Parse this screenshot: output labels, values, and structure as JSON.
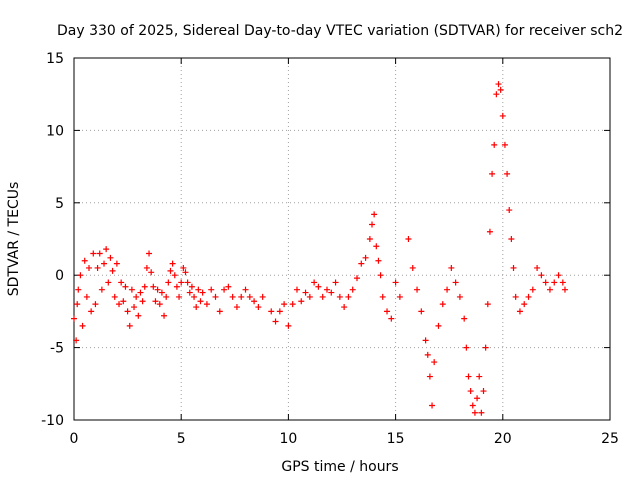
{
  "chart_data": {
    "type": "scatter",
    "title": "Day 330 of 2025, Sidereal Day-to-day VTEC variation (SDTVAR) for receiver sch2",
    "xlabel": "GPS time / hours",
    "ylabel": "SDTVAR / TECUs",
    "xlim": [
      0,
      25
    ],
    "ylim": [
      -10,
      15
    ],
    "xticks": [
      0,
      5,
      10,
      15,
      20,
      25
    ],
    "yticks": [
      -10,
      -5,
      0,
      5,
      10,
      15
    ],
    "xtick_labels": [
      "0",
      "5",
      "10",
      "15",
      "20",
      "25"
    ],
    "ytick_labels": [
      "-10",
      "-5",
      "0",
      "5",
      "10",
      "15"
    ],
    "grid": true,
    "marker": "+",
    "series": [
      {
        "name": "SDTVAR",
        "color": "#ff0000",
        "points": [
          [
            0.0,
            -3.0
          ],
          [
            0.1,
            -4.5
          ],
          [
            0.15,
            -2.0
          ],
          [
            0.2,
            -1.0
          ],
          [
            0.3,
            0.0
          ],
          [
            0.4,
            -3.5
          ],
          [
            0.5,
            1.0
          ],
          [
            0.6,
            -1.5
          ],
          [
            0.7,
            0.5
          ],
          [
            0.8,
            -2.5
          ],
          [
            0.9,
            1.5
          ],
          [
            1.0,
            -2.0
          ],
          [
            1.1,
            0.5
          ],
          [
            1.2,
            1.5
          ],
          [
            1.3,
            -1.0
          ],
          [
            1.4,
            0.8
          ],
          [
            1.5,
            1.8
          ],
          [
            1.6,
            -0.5
          ],
          [
            1.7,
            1.2
          ],
          [
            1.8,
            0.3
          ],
          [
            1.9,
            -1.5
          ],
          [
            2.0,
            0.8
          ],
          [
            2.1,
            -2.0
          ],
          [
            2.2,
            -0.5
          ],
          [
            2.3,
            -1.8
          ],
          [
            2.4,
            -0.8
          ],
          [
            2.5,
            -2.5
          ],
          [
            2.6,
            -3.5
          ],
          [
            2.7,
            -1.0
          ],
          [
            2.8,
            -2.2
          ],
          [
            2.9,
            -1.5
          ],
          [
            3.0,
            -2.8
          ],
          [
            3.1,
            -1.2
          ],
          [
            3.2,
            -1.8
          ],
          [
            3.3,
            -0.8
          ],
          [
            3.4,
            0.5
          ],
          [
            3.5,
            1.5
          ],
          [
            3.6,
            0.2
          ],
          [
            3.7,
            -0.8
          ],
          [
            3.8,
            -1.8
          ],
          [
            3.9,
            -1.0
          ],
          [
            4.0,
            -2.0
          ],
          [
            4.1,
            -1.2
          ],
          [
            4.2,
            -2.8
          ],
          [
            4.3,
            -1.5
          ],
          [
            4.4,
            -0.5
          ],
          [
            4.5,
            0.3
          ],
          [
            4.6,
            0.8
          ],
          [
            4.7,
            0.0
          ],
          [
            4.8,
            -0.8
          ],
          [
            4.9,
            -1.5
          ],
          [
            5.0,
            -0.5
          ],
          [
            5.1,
            0.5
          ],
          [
            5.2,
            0.2
          ],
          [
            5.3,
            -0.5
          ],
          [
            5.4,
            -1.2
          ],
          [
            5.5,
            -0.8
          ],
          [
            5.6,
            -1.5
          ],
          [
            5.7,
            -2.2
          ],
          [
            5.8,
            -1.0
          ],
          [
            5.9,
            -1.8
          ],
          [
            6.0,
            -1.2
          ],
          [
            6.2,
            -2.0
          ],
          [
            6.4,
            -1.0
          ],
          [
            6.6,
            -1.5
          ],
          [
            6.8,
            -2.5
          ],
          [
            7.0,
            -1.0
          ],
          [
            7.2,
            -0.8
          ],
          [
            7.4,
            -1.5
          ],
          [
            7.6,
            -2.2
          ],
          [
            7.8,
            -1.5
          ],
          [
            8.0,
            -1.0
          ],
          [
            8.2,
            -1.5
          ],
          [
            8.4,
            -1.8
          ],
          [
            8.6,
            -2.2
          ],
          [
            8.8,
            -1.5
          ],
          [
            9.2,
            -2.5
          ],
          [
            9.4,
            -3.2
          ],
          [
            9.6,
            -2.5
          ],
          [
            9.8,
            -2.0
          ],
          [
            10.0,
            -3.5
          ],
          [
            10.2,
            -2.0
          ],
          [
            10.4,
            -1.0
          ],
          [
            10.6,
            -1.8
          ],
          [
            10.8,
            -1.2
          ],
          [
            11.0,
            -1.5
          ],
          [
            11.2,
            -0.5
          ],
          [
            11.4,
            -0.8
          ],
          [
            11.6,
            -1.5
          ],
          [
            11.8,
            -1.0
          ],
          [
            12.0,
            -1.2
          ],
          [
            12.2,
            -0.5
          ],
          [
            12.4,
            -1.5
          ],
          [
            12.6,
            -2.2
          ],
          [
            12.8,
            -1.5
          ],
          [
            13.0,
            -1.0
          ],
          [
            13.2,
            -0.2
          ],
          [
            13.4,
            0.8
          ],
          [
            13.6,
            1.2
          ],
          [
            13.8,
            2.5
          ],
          [
            13.9,
            3.5
          ],
          [
            14.0,
            4.2
          ],
          [
            14.1,
            2.0
          ],
          [
            14.2,
            1.0
          ],
          [
            14.3,
            0.0
          ],
          [
            14.4,
            -1.5
          ],
          [
            14.6,
            -2.5
          ],
          [
            14.8,
            -3.0
          ],
          [
            15.0,
            -0.5
          ],
          [
            15.2,
            -1.5
          ],
          [
            15.6,
            2.5
          ],
          [
            15.8,
            0.5
          ],
          [
            16.0,
            -1.0
          ],
          [
            16.2,
            -2.5
          ],
          [
            16.4,
            -4.5
          ],
          [
            16.5,
            -5.5
          ],
          [
            16.6,
            -7.0
          ],
          [
            16.7,
            -9.0
          ],
          [
            16.8,
            -6.0
          ],
          [
            17.0,
            -3.5
          ],
          [
            17.2,
            -2.0
          ],
          [
            17.4,
            -1.0
          ],
          [
            17.6,
            0.5
          ],
          [
            17.8,
            -0.5
          ],
          [
            18.0,
            -1.5
          ],
          [
            18.2,
            -3.0
          ],
          [
            18.3,
            -5.0
          ],
          [
            18.4,
            -7.0
          ],
          [
            18.5,
            -8.0
          ],
          [
            18.6,
            -9.0
          ],
          [
            18.7,
            -9.5
          ],
          [
            18.8,
            -8.5
          ],
          [
            18.9,
            -7.0
          ],
          [
            19.0,
            -9.5
          ],
          [
            19.1,
            -8.0
          ],
          [
            19.2,
            -5.0
          ],
          [
            19.3,
            -2.0
          ],
          [
            19.4,
            3.0
          ],
          [
            19.5,
            7.0
          ],
          [
            19.6,
            9.0
          ],
          [
            19.7,
            12.5
          ],
          [
            19.8,
            13.2
          ],
          [
            19.9,
            12.8
          ],
          [
            20.0,
            11.0
          ],
          [
            20.1,
            9.0
          ],
          [
            20.2,
            7.0
          ],
          [
            20.3,
            4.5
          ],
          [
            20.4,
            2.5
          ],
          [
            20.5,
            0.5
          ],
          [
            20.6,
            -1.5
          ],
          [
            20.8,
            -2.5
          ],
          [
            21.0,
            -2.0
          ],
          [
            21.2,
            -1.5
          ],
          [
            21.4,
            -1.0
          ],
          [
            21.6,
            0.5
          ],
          [
            21.8,
            0.0
          ],
          [
            22.0,
            -0.5
          ],
          [
            22.2,
            -1.0
          ],
          [
            22.4,
            -0.5
          ],
          [
            22.6,
            0.0
          ],
          [
            22.8,
            -0.5
          ],
          [
            22.9,
            -1.0
          ]
        ]
      }
    ]
  }
}
